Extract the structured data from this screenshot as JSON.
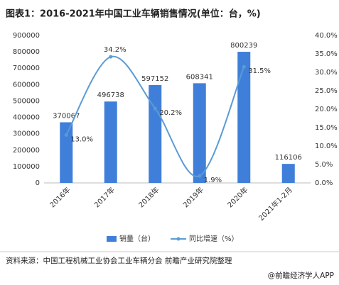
{
  "chart_data": {
    "type": "bar",
    "title": "图表1：2016-2021年中国工业车辆销售情况(单位：台，%)",
    "categories": [
      "2016年",
      "2017年",
      "2018年",
      "2019年",
      "2020年",
      "2021年1-2月"
    ],
    "series": [
      {
        "name": "销量（台）",
        "type": "bar",
        "color": "#3f7fd9",
        "values": [
          370067,
          496738,
          597152,
          608341,
          800239,
          116106
        ]
      },
      {
        "name": "同比增速（%）",
        "type": "line",
        "axis": "y2",
        "color": "#5b9bd5",
        "values": [
          13.0,
          34.2,
          20.2,
          1.9,
          31.5,
          null
        ],
        "value_labels": [
          "13.0%",
          "34.2%",
          "20.2%",
          "1.9%",
          "31.5%",
          null
        ]
      }
    ],
    "ylim": [
      0,
      900000
    ],
    "yticks": [
      0,
      100000,
      200000,
      300000,
      400000,
      500000,
      600000,
      700000,
      800000,
      900000
    ],
    "y2lim": [
      0,
      40
    ],
    "y2ticks": [
      {
        "value": 0,
        "label": "0.0%"
      },
      {
        "value": 5,
        "label": "5.0%"
      },
      {
        "value": 10,
        "label": "10.0%"
      },
      {
        "value": 15,
        "label": "15.0%"
      },
      {
        "value": 20,
        "label": "20.0%"
      },
      {
        "value": 25,
        "label": "25.0%"
      },
      {
        "value": 30,
        "label": "30.0%"
      },
      {
        "value": 35,
        "label": "35.0%"
      },
      {
        "value": 40,
        "label": "40.0%"
      }
    ],
    "grid": false,
    "legend": "bottom"
  },
  "footer": {
    "source": "资料来源：中国工程机械工业协会工业车辆分会 前瞻产业研究院整理",
    "credit": "@前瞻经济学人APP"
  }
}
